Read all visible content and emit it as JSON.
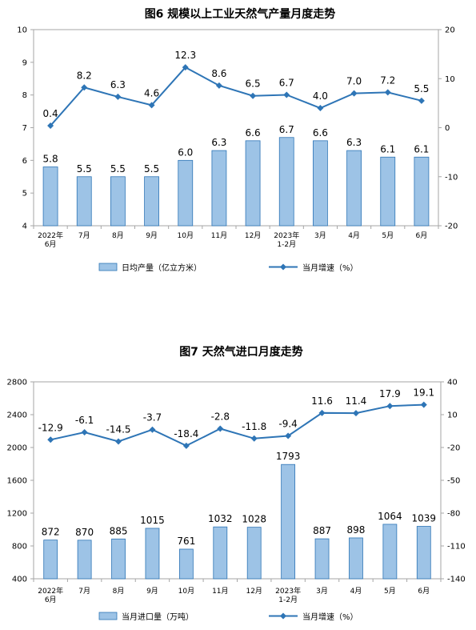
{
  "chart_data": [
    {
      "type": "bar+line",
      "title": "图6  规模以上工业天然气产量月度走势",
      "categories": [
        [
          "2022年",
          "6月"
        ],
        [
          "7月"
        ],
        [
          "8月"
        ],
        [
          "9月"
        ],
        [
          "10月"
        ],
        [
          "11月"
        ],
        [
          "12月"
        ],
        [
          "2023年",
          "1-2月"
        ],
        [
          "3月"
        ],
        [
          "4月"
        ],
        [
          "5月"
        ],
        [
          "6月"
        ]
      ],
      "left_axis": {
        "min": 4,
        "max": 10,
        "ticks": [
          "4",
          "5",
          "6",
          "7",
          "8",
          "9",
          "10"
        ]
      },
      "right_axis": {
        "min": -20,
        "max": 20,
        "ticks": [
          "-20",
          "-10",
          "0",
          "10",
          "20"
        ]
      },
      "series": [
        {
          "name": "日均产量（亿立方米）",
          "kind": "bar",
          "axis": "left",
          "values": [
            5.8,
            5.5,
            5.5,
            5.5,
            6.0,
            6.3,
            6.6,
            6.7,
            6.6,
            6.3,
            6.1,
            6.1
          ],
          "labels": [
            "5.8",
            "5.5",
            "5.5",
            "5.5",
            "6.0",
            "6.3",
            "6.6",
            "6.7",
            "6.6",
            "6.3",
            "6.1",
            "6.1"
          ]
        },
        {
          "name": "当月增速（%）",
          "kind": "line",
          "axis": "right",
          "values": [
            0.4,
            8.2,
            6.3,
            4.6,
            12.3,
            8.6,
            6.5,
            6.7,
            4.0,
            7.0,
            7.2,
            5.5
          ],
          "labels": [
            "0.4",
            "8.2",
            "6.3",
            "4.6",
            "12.3",
            "8.6",
            "6.5",
            "6.7",
            "4.0",
            "7.0",
            "7.2",
            "5.5"
          ]
        }
      ],
      "colors": {
        "bar_fill": "#9dc3e6",
        "bar_stroke": "#2e75b6",
        "line": "#2e75b6"
      }
    },
    {
      "type": "bar+line",
      "title": "图7  天然气进口月度走势",
      "categories": [
        [
          "2022年",
          "6月"
        ],
        [
          "7月"
        ],
        [
          "8月"
        ],
        [
          "9月"
        ],
        [
          "10月"
        ],
        [
          "11月"
        ],
        [
          "12月"
        ],
        [
          "2023年",
          "1-2月"
        ],
        [
          "3月"
        ],
        [
          "4月"
        ],
        [
          "5月"
        ],
        [
          "6月"
        ]
      ],
      "left_axis": {
        "min": 400,
        "max": 2800,
        "ticks": [
          "400",
          "800",
          "1200",
          "1600",
          "2000",
          "2400",
          "2800"
        ]
      },
      "right_axis": {
        "min": -140,
        "max": 40,
        "ticks": [
          "-140",
          "-110",
          "-80",
          "-50",
          "-20",
          "10",
          "40"
        ]
      },
      "series": [
        {
          "name": "当月进口量（万吨）",
          "kind": "bar",
          "axis": "left",
          "values": [
            872,
            870,
            885,
            1015,
            761,
            1032,
            1028,
            1793,
            887,
            898,
            1064,
            1039
          ],
          "labels": [
            "872",
            "870",
            "885",
            "1015",
            "761",
            "1032",
            "1028",
            "1793",
            "887",
            "898",
            "1064",
            "1039"
          ]
        },
        {
          "name": "当月增速（%）",
          "kind": "line",
          "axis": "right",
          "values": [
            -12.9,
            -6.1,
            -14.5,
            -3.7,
            -18.4,
            -2.8,
            -11.8,
            -9.4,
            11.6,
            11.4,
            17.9,
            19.1
          ],
          "labels": [
            "-12.9",
            "-6.1",
            "-14.5",
            "-3.7",
            "-18.4",
            "-2.8",
            "-11.8",
            "-9.4",
            "11.6",
            "11.4",
            "17.9",
            "19.1"
          ]
        }
      ],
      "colors": {
        "bar_fill": "#9dc3e6",
        "bar_stroke": "#2e75b6",
        "line": "#2e75b6"
      }
    }
  ]
}
